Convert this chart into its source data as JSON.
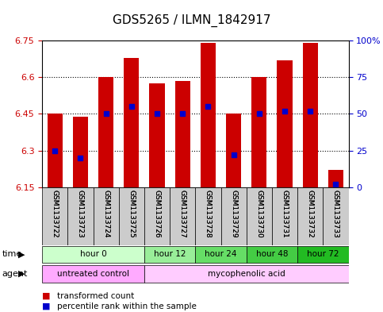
{
  "title": "GDS5265 / ILMN_1842917",
  "samples": [
    "GSM1133722",
    "GSM1133723",
    "GSM1133724",
    "GSM1133725",
    "GSM1133726",
    "GSM1133727",
    "GSM1133728",
    "GSM1133729",
    "GSM1133730",
    "GSM1133731",
    "GSM1133732",
    "GSM1133733"
  ],
  "transformed_count": [
    6.45,
    6.44,
    6.6,
    6.68,
    6.575,
    6.585,
    6.74,
    6.45,
    6.6,
    6.67,
    6.74,
    6.22
  ],
  "percentile_rank": [
    25,
    20,
    50,
    55,
    50,
    50,
    55,
    22,
    50,
    52,
    52,
    2
  ],
  "bar_bottom": 6.15,
  "y_min": 6.15,
  "y_max": 6.75,
  "y_ticks": [
    6.15,
    6.3,
    6.45,
    6.6,
    6.75
  ],
  "y_tick_labels": [
    "6.15",
    "6.3",
    "6.45",
    "6.6",
    "6.75"
  ],
  "right_y_ticks": [
    0,
    25,
    50,
    75,
    100
  ],
  "right_y_tick_labels": [
    "0",
    "25",
    "50",
    "75",
    "100%"
  ],
  "bar_color": "#cc0000",
  "dot_color": "#0000cc",
  "bar_width": 0.6,
  "time_groups": [
    {
      "label": "hour 0",
      "start": 0,
      "end": 3,
      "color": "#ccffcc"
    },
    {
      "label": "hour 12",
      "start": 4,
      "end": 5,
      "color": "#99ee99"
    },
    {
      "label": "hour 24",
      "start": 6,
      "end": 7,
      "color": "#66dd66"
    },
    {
      "label": "hour 48",
      "start": 8,
      "end": 9,
      "color": "#44cc44"
    },
    {
      "label": "hour 72",
      "start": 10,
      "end": 11,
      "color": "#22bb22"
    }
  ],
  "agent_groups": [
    {
      "label": "untreated control",
      "start": 0,
      "end": 3,
      "color": "#ffaaff"
    },
    {
      "label": "mycophenolic acid",
      "start": 4,
      "end": 11,
      "color": "#ffccff"
    }
  ],
  "legend_items": [
    {
      "color": "#cc0000",
      "label": "transformed count"
    },
    {
      "color": "#0000cc",
      "label": "percentile rank within the sample"
    }
  ],
  "xlabel_color": "#cc0000",
  "ylabel_left_color": "#cc0000",
  "ylabel_right_color": "#0000cc",
  "grid_color": "black",
  "grid_style": "dotted",
  "bg_color": "#ffffff",
  "plot_bg_color": "#ffffff",
  "tick_label_color_left": "#cc0000",
  "tick_label_color_right": "#0000cc"
}
